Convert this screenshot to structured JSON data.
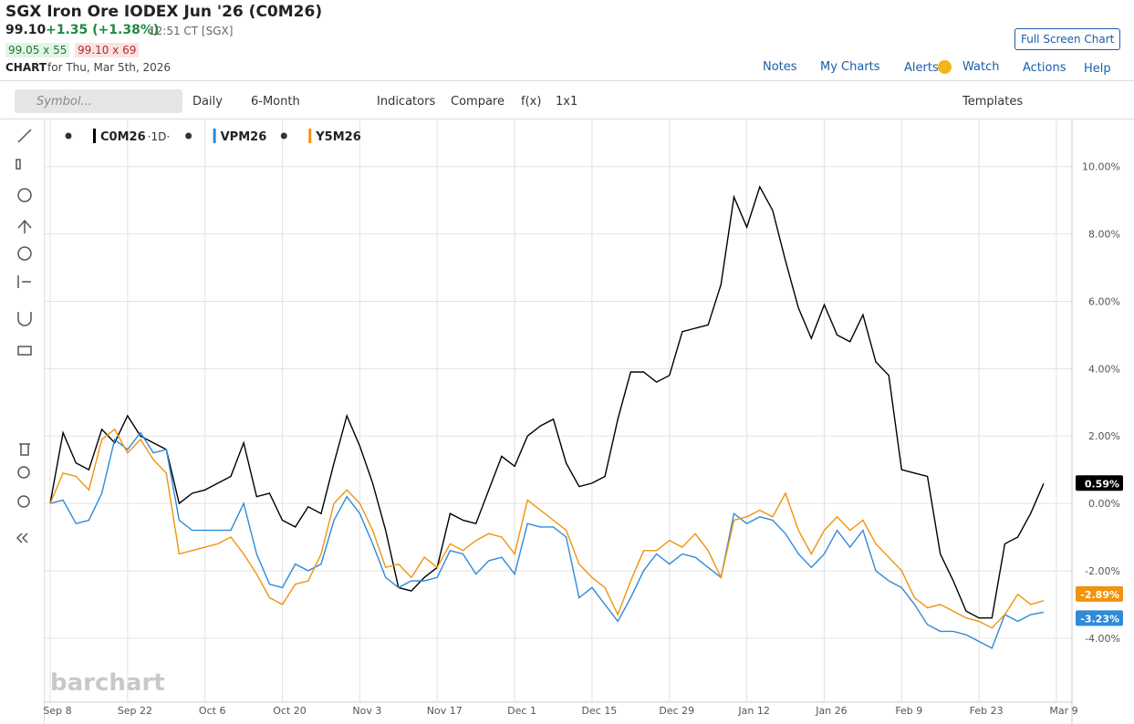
{
  "header": {
    "title": "SGX Iron Ore IODEX Jun '26 (C0M26)",
    "price": "99.10",
    "change": "+1.35 (+1.38%)",
    "time": "12:51 CT [SGX]",
    "bid": "99.05 x 55",
    "ask": "99.10 x 69",
    "chart_label": "CHART",
    "chart_date": "for Thu, Mar 5th, 2026",
    "fullscreen": "Full Screen Chart"
  },
  "nav": [
    "Notes",
    "My Charts",
    "Alerts",
    "Watch",
    "Actions",
    "Help"
  ],
  "toolbar": {
    "symbol": "Symbol...",
    "items": [
      "Daily",
      "6-Month",
      "Indicators",
      "Compare",
      "f(x)",
      "1x1"
    ],
    "templates": "Templates"
  },
  "watermark": "barchart",
  "chart_data": {
    "type": "line",
    "legend_interval": "·1D·",
    "categories": [
      "Sep 8",
      null,
      null,
      null,
      null,
      null,
      "Sep 22",
      null,
      null,
      null,
      null,
      null,
      "Oct 6",
      null,
      null,
      null,
      null,
      null,
      "Oct 20",
      null,
      null,
      null,
      null,
      null,
      "Nov 3",
      null,
      null,
      null,
      null,
      null,
      "Nov 17",
      null,
      null,
      null,
      null,
      null,
      "Dec 1",
      null,
      null,
      null,
      null,
      null,
      "Dec 15",
      null,
      null,
      null,
      null,
      null,
      "Dec 29",
      null,
      null,
      null,
      null,
      null,
      "Jan 12",
      null,
      null,
      null,
      null,
      null,
      "Jan 26",
      null,
      null,
      null,
      null,
      null,
      "Feb 9",
      null,
      null,
      null,
      null,
      null,
      "Feb 23",
      null,
      null,
      null,
      null,
      null,
      "Mar 9"
    ],
    "ylim": [
      -5.9,
      11.4
    ],
    "yticks": [
      {
        "value": -4,
        "label": "-4.00%"
      },
      {
        "value": -2,
        "label": "-2.00%"
      },
      {
        "value": 0,
        "label": "0.00%"
      },
      {
        "value": 2,
        "label": "2.00%"
      },
      {
        "value": 4,
        "label": "4.00%"
      },
      {
        "value": 6,
        "label": "6.00%"
      },
      {
        "value": 8,
        "label": "8.00%"
      },
      {
        "value": 10,
        "label": "10.00%"
      }
    ],
    "grid": true,
    "series": [
      {
        "name": "C0M26",
        "color": "#000000",
        "values": [
          0,
          2.1,
          1.2,
          1.0,
          2.2,
          1.8,
          2.6,
          2.0,
          1.8,
          1.6,
          0.0,
          0.3,
          0.4,
          0.6,
          0.8,
          1.8,
          0.2,
          0.3,
          -0.5,
          -0.7,
          -0.1,
          -0.3,
          1.2,
          2.6,
          1.7,
          0.6,
          -0.8,
          -2.5,
          -2.6,
          -2.2,
          -1.9,
          -0.3,
          -0.5,
          -0.6,
          0.4,
          1.4,
          1.1,
          2.0,
          2.3,
          2.5,
          1.2,
          0.5,
          0.6,
          0.8,
          2.5,
          3.9,
          3.9,
          3.6,
          3.8,
          5.1,
          5.2,
          5.3,
          6.5,
          9.1,
          8.2,
          9.4,
          8.7,
          7.2,
          5.8,
          4.9,
          5.9,
          5.0,
          4.8,
          5.6,
          4.2,
          3.8,
          1.0,
          0.9,
          0.8,
          -1.5,
          -2.3,
          -3.2,
          -3.4,
          -3.4,
          -1.2,
          -1.0,
          -0.3,
          0.59,
          null
        ],
        "value_labels": [
          null,
          null,
          null,
          null,
          null,
          null,
          null,
          null,
          null,
          null,
          null,
          null,
          null,
          null,
          null,
          null,
          null,
          null,
          null,
          null,
          null,
          null,
          null,
          null,
          null,
          null,
          null,
          null,
          null,
          null,
          null,
          null,
          null,
          null,
          null,
          null,
          null,
          null,
          null,
          null,
          null,
          null,
          null,
          null,
          null,
          null,
          null,
          null,
          null,
          null,
          null,
          null,
          null,
          null,
          null,
          null,
          null,
          null,
          null,
          null,
          null,
          null,
          null,
          null,
          null,
          null,
          null,
          null,
          null,
          null,
          null,
          null,
          null,
          null,
          null,
          null,
          null,
          "0.59%",
          null
        ]
      },
      {
        "name": "VPM26",
        "color": "#2f8ad8",
        "values": [
          0,
          0.1,
          -0.6,
          -0.5,
          0.3,
          1.9,
          1.6,
          2.1,
          1.5,
          1.6,
          -0.5,
          -0.8,
          -0.8,
          -0.8,
          -0.8,
          0.0,
          -1.5,
          -2.4,
          -2.5,
          -1.8,
          -2.0,
          -1.8,
          -0.5,
          0.2,
          -0.3,
          -1.2,
          -2.2,
          -2.5,
          -2.3,
          -2.3,
          -2.2,
          -1.4,
          -1.5,
          -2.1,
          -1.7,
          -1.6,
          -2.1,
          -0.6,
          -0.7,
          -0.7,
          -1.0,
          -2.8,
          -2.5,
          -3.0,
          -3.5,
          -2.8,
          -2.0,
          -1.5,
          -1.8,
          -1.5,
          -1.6,
          -1.9,
          -2.2,
          -0.3,
          -0.6,
          -0.4,
          -0.5,
          -0.9,
          -1.5,
          -1.9,
          -1.5,
          -0.8,
          -1.3,
          -0.8,
          -2.0,
          -2.3,
          -2.5,
          -3.0,
          -3.6,
          -3.8,
          -3.8,
          -3.9,
          -4.1,
          -4.3,
          -3.3,
          -3.5,
          -3.3,
          -3.23,
          null
        ],
        "value_labels": [
          null,
          null,
          null,
          null,
          null,
          null,
          null,
          null,
          null,
          null,
          null,
          null,
          null,
          null,
          null,
          null,
          null,
          null,
          null,
          null,
          null,
          null,
          null,
          null,
          null,
          null,
          null,
          null,
          null,
          null,
          null,
          null,
          null,
          null,
          null,
          null,
          null,
          null,
          null,
          null,
          null,
          null,
          null,
          null,
          null,
          null,
          null,
          null,
          null,
          null,
          null,
          null,
          null,
          null,
          null,
          null,
          null,
          null,
          null,
          null,
          null,
          null,
          null,
          null,
          null,
          null,
          null,
          null,
          null,
          null,
          null,
          null,
          null,
          null,
          null,
          null,
          null,
          "-3.23%",
          null
        ]
      },
      {
        "name": "Y5M26",
        "color": "#f0930e",
        "values": [
          0,
          0.9,
          0.8,
          0.4,
          1.9,
          2.2,
          1.5,
          1.9,
          1.3,
          0.9,
          -1.5,
          -1.4,
          -1.3,
          -1.2,
          -1.0,
          -1.5,
          -2.1,
          -2.8,
          -3.0,
          -2.4,
          -2.3,
          -1.5,
          0.0,
          0.4,
          0.0,
          -0.8,
          -1.9,
          -1.8,
          -2.2,
          -1.6,
          -1.9,
          -1.2,
          -1.4,
          -1.1,
          -0.9,
          -1.0,
          -1.5,
          0.1,
          -0.2,
          -0.5,
          -0.8,
          -1.8,
          -2.2,
          -2.5,
          -3.3,
          -2.3,
          -1.4,
          -1.4,
          -1.1,
          -1.3,
          -0.9,
          -1.4,
          -2.2,
          -0.5,
          -0.4,
          -0.2,
          -0.4,
          0.3,
          -0.8,
          -1.5,
          -0.8,
          -0.4,
          -0.8,
          -0.5,
          -1.2,
          -1.6,
          -2.0,
          -2.8,
          -3.1,
          -3.0,
          -3.2,
          -3.4,
          -3.5,
          -3.7,
          -3.3,
          -2.7,
          -3.0,
          -2.89,
          null
        ],
        "value_labels": [
          null,
          null,
          null,
          null,
          null,
          null,
          null,
          null,
          null,
          null,
          null,
          null,
          null,
          null,
          null,
          null,
          null,
          null,
          null,
          null,
          null,
          null,
          null,
          null,
          null,
          null,
          null,
          null,
          null,
          null,
          null,
          null,
          null,
          null,
          null,
          null,
          null,
          null,
          null,
          null,
          null,
          null,
          null,
          null,
          null,
          null,
          null,
          null,
          null,
          null,
          null,
          null,
          null,
          null,
          null,
          null,
          null,
          null,
          null,
          null,
          null,
          null,
          null,
          null,
          null,
          null,
          null,
          null,
          null,
          null,
          null,
          null,
          null,
          null,
          null,
          null,
          null,
          "-2.89%",
          null
        ]
      }
    ]
  }
}
